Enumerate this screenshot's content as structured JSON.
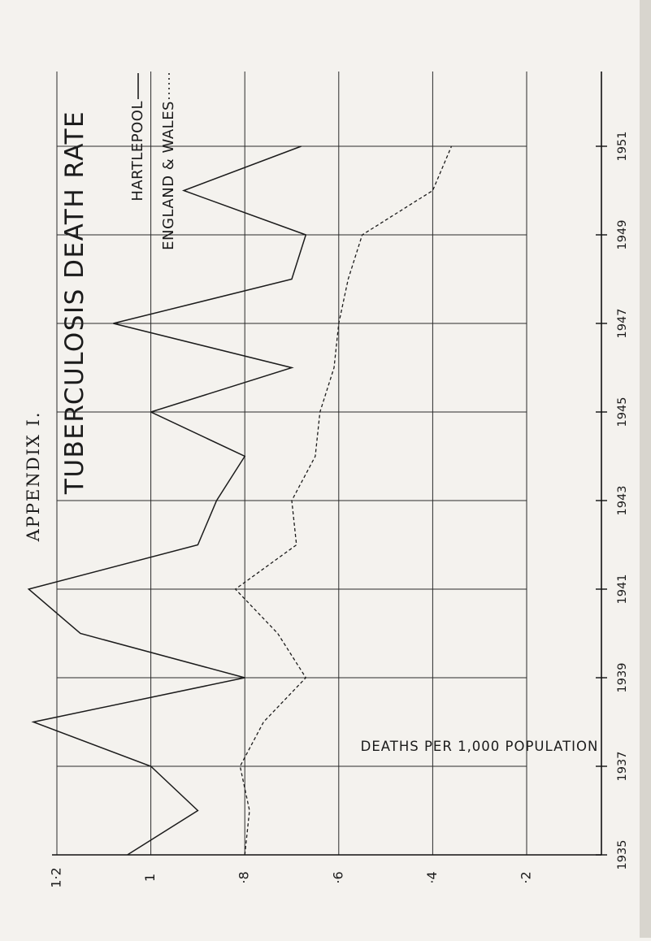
{
  "page": {
    "appendix_label": "APPENDIX I."
  },
  "chart_data": {
    "type": "line",
    "title": "TUBERCULOSIS DEATH RATE",
    "ylabel": "DEATHS PER 1,000 POPULATION",
    "x": [
      1935,
      1936,
      1937,
      1938,
      1939,
      1940,
      1941,
      1942,
      1943,
      1944,
      1945,
      1946,
      1947,
      1948,
      1949,
      1950,
      1951
    ],
    "x_tick_labels": [
      "1935",
      "1937",
      "1939",
      "1941",
      "1943",
      "1945",
      "1947",
      "1949",
      "1951"
    ],
    "y_tick_labels": [
      "1·2",
      "1",
      "·8",
      "·6",
      "·4",
      "·2"
    ],
    "ylim": [
      0.2,
      1.2
    ],
    "grid": true,
    "legend_position": "top-left",
    "series": [
      {
        "name": "HARTLEPOOL",
        "style": "solid",
        "color": "#1b1b1b",
        "values": [
          1.05,
          0.9,
          1.0,
          1.25,
          0.8,
          1.15,
          1.26,
          0.9,
          0.86,
          0.8,
          1.0,
          0.7,
          1.08,
          0.7,
          0.67,
          0.93,
          0.68
        ]
      },
      {
        "name": "ENGLAND & WALES",
        "style": "dashed",
        "color": "#1b1b1b",
        "values": [
          0.8,
          0.79,
          0.81,
          0.76,
          0.67,
          0.73,
          0.82,
          0.69,
          0.7,
          0.65,
          0.64,
          0.61,
          0.6,
          0.58,
          0.55,
          0.4,
          0.36
        ]
      }
    ]
  }
}
